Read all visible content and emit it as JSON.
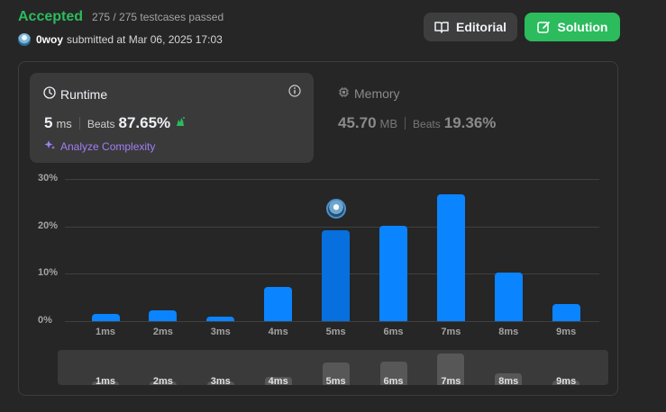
{
  "header": {
    "status": "Accepted",
    "testcases": "275 / 275 testcases passed",
    "username": "0woy",
    "submitted_text": "submitted at Mar 06, 2025 17:03"
  },
  "buttons": {
    "editorial": "Editorial",
    "solution": "Solution"
  },
  "runtime": {
    "title": "Runtime",
    "value": "5",
    "unit": "ms",
    "beats_label": "Beats",
    "beats_pct": "87.65%",
    "analyze": "Analyze Complexity"
  },
  "memory": {
    "title": "Memory",
    "value": "45.70",
    "unit": "MB",
    "beats_label": "Beats",
    "beats_pct": "19.36%"
  },
  "colors": {
    "accepted": "#2cbb5d",
    "bar": "#0a84ff",
    "analyze": "#a07ff5"
  },
  "chart_data": {
    "type": "bar",
    "categories": [
      "1ms",
      "2ms",
      "3ms",
      "4ms",
      "5ms",
      "6ms",
      "7ms",
      "8ms",
      "9ms"
    ],
    "values": [
      1.5,
      2.2,
      1.0,
      7.3,
      19.2,
      20.1,
      26.8,
      10.3,
      3.6
    ],
    "ylim": [
      0,
      30
    ],
    "yticks": [
      "0%",
      "10%",
      "20%",
      "30%"
    ],
    "highlight": "5ms"
  },
  "minimap": {
    "labels": [
      "1ms",
      "2ms",
      "3ms",
      "4ms",
      "5ms",
      "6ms",
      "7ms",
      "8ms",
      "9ms"
    ]
  }
}
